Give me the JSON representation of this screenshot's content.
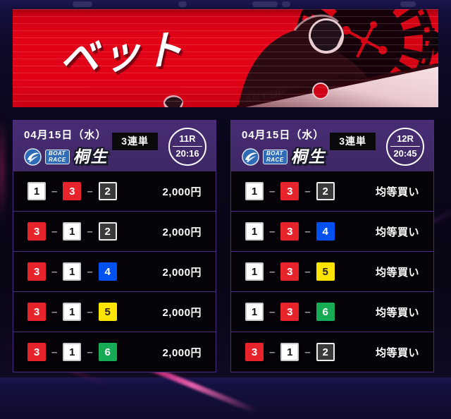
{
  "banner": {
    "title": "ベット",
    "hull_text": "AN CUP"
  },
  "logo": {
    "line1": "BOAT",
    "line2": "RACE"
  },
  "separator": "–",
  "colors": {
    "banner_red": "#e10016",
    "header_purple": "#43296b",
    "panel_border": "#4b2c80",
    "row_bg": "#050208",
    "accent_magenta": "#e82a7d"
  },
  "racer_colors": {
    "1": {
      "bg": "#ffffff",
      "fg": "#111111",
      "border": "#c9c9c9"
    },
    "2": {
      "bg": "#3a3a3a",
      "fg": "#ffffff",
      "border": "#ededed"
    },
    "3": {
      "bg": "#e7232b",
      "fg": "#ffffff",
      "border": "#e7232b"
    },
    "4": {
      "bg": "#0051f0",
      "fg": "#ffffff",
      "border": "#0051f0"
    },
    "5": {
      "bg": "#ffe400",
      "fg": "#222222",
      "border": "#ffe400"
    },
    "6": {
      "bg": "#17ab55",
      "fg": "#ffffff",
      "border": "#17ab55"
    }
  },
  "panels": [
    {
      "date": "04月15日（水）",
      "bet_type": "3連単",
      "race": "11R",
      "time": "20:16",
      "venue": "桐生",
      "rows": [
        {
          "numbers": [
            1,
            3,
            2
          ],
          "amount": "2,000円"
        },
        {
          "numbers": [
            3,
            1,
            2
          ],
          "amount": "2,000円"
        },
        {
          "numbers": [
            3,
            1,
            4
          ],
          "amount": "2,000円"
        },
        {
          "numbers": [
            3,
            1,
            5
          ],
          "amount": "2,000円"
        },
        {
          "numbers": [
            3,
            1,
            6
          ],
          "amount": "2,000円"
        }
      ]
    },
    {
      "date": "04月15日（水）",
      "bet_type": "3連単",
      "race": "12R",
      "time": "20:45",
      "venue": "桐生",
      "rows": [
        {
          "numbers": [
            1,
            3,
            2
          ],
          "amount": "均等買い"
        },
        {
          "numbers": [
            1,
            3,
            4
          ],
          "amount": "均等買い"
        },
        {
          "numbers": [
            1,
            3,
            5
          ],
          "amount": "均等買い"
        },
        {
          "numbers": [
            1,
            3,
            6
          ],
          "amount": "均等買い"
        },
        {
          "numbers": [
            3,
            1,
            2
          ],
          "amount": "均等買い"
        }
      ]
    }
  ]
}
